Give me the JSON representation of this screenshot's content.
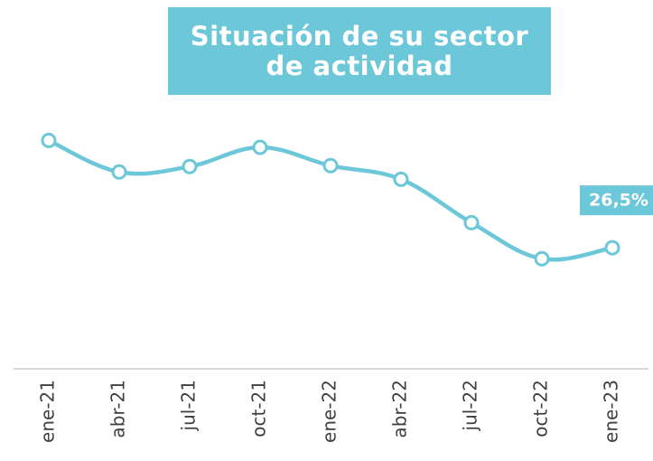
{
  "chart_data": {
    "type": "line",
    "title": "Situación de su sector de actividad",
    "categories": [
      "ene-21",
      "abr-21",
      "jul-21",
      "oct-21",
      "ene-22",
      "abr-22",
      "jul-22",
      "oct-22",
      "ene-23"
    ],
    "values": [
      50.0,
      43.1,
      44.3,
      48.5,
      44.5,
      41.5,
      32.0,
      24.1,
      26.5
    ],
    "value_labels": [
      null,
      null,
      null,
      null,
      null,
      null,
      null,
      null,
      "26,5%"
    ],
    "color": "#6cc7d8",
    "ylim": [
      0,
      58
    ]
  }
}
